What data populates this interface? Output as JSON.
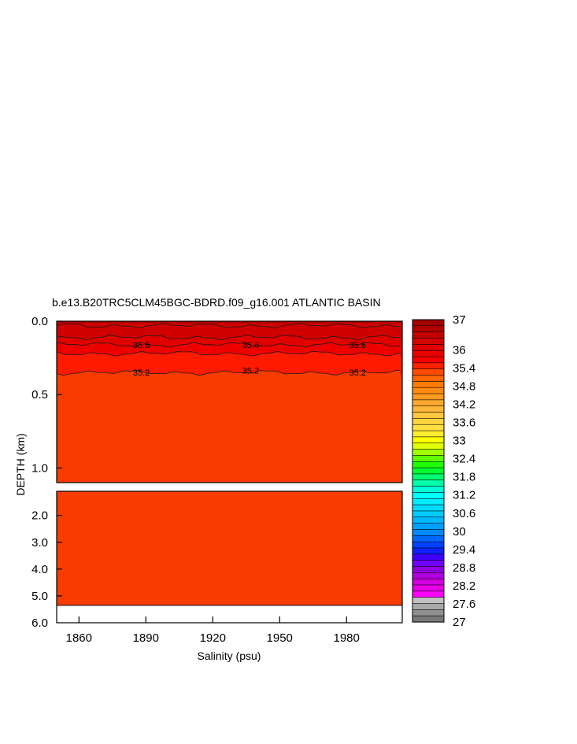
{
  "chart_data": {
    "type": "heatmap",
    "title": "b.e13.B20TRC5CLM45BGC-BDRD.f09_g16.001 ATLANTIC BASIN",
    "xlabel": "Salinity (psu)",
    "ylabel": "DEPTH (km)",
    "x_range": [
      1850,
      2005
    ],
    "x_ticks": [
      1860,
      1890,
      1920,
      1950,
      1980
    ],
    "x_tick_labels": [
      "1860",
      "1890",
      "1920",
      "1950",
      "1980"
    ],
    "upper_panel": {
      "depth_range": [
        0.0,
        1.1
      ],
      "y_ticks": [
        0.0,
        0.5,
        1.0
      ],
      "y_tick_labels": [
        "0.0",
        "0.5",
        "1.0"
      ]
    },
    "lower_panel": {
      "depth_range": [
        1.1,
        6.0
      ],
      "y_ticks": [
        2.0,
        3.0,
        4.0,
        5.0,
        6.0
      ],
      "y_tick_labels": [
        "2.0",
        "3.0",
        "4.0",
        "5.0",
        "6.0"
      ],
      "data_bottom_depth": 5.35
    },
    "bands": [
      {
        "from_depth": 0.0,
        "to_depth": 0.03,
        "color": "#b00000"
      },
      {
        "from_depth": 0.03,
        "to_depth": 0.11,
        "color": "#d00000"
      },
      {
        "from_depth": 0.11,
        "to_depth": 0.16,
        "color": "#e00000"
      },
      {
        "from_depth": 0.16,
        "to_depth": 0.22,
        "color": "#ee0000"
      },
      {
        "from_depth": 0.22,
        "to_depth": 0.35,
        "color": "#ff1a00"
      },
      {
        "from_depth": 0.35,
        "to_depth": 6.0,
        "color": "#f83c00"
      }
    ],
    "contour_depths": [
      0.03,
      0.11,
      0.16,
      0.22,
      0.35
    ],
    "contour_labels": [
      {
        "text": "35.6",
        "x": 1888,
        "depth": 0.16
      },
      {
        "text": "35.6",
        "x": 1937,
        "depth": 0.16
      },
      {
        "text": "35.6",
        "x": 1985,
        "depth": 0.16
      },
      {
        "text": "35.2",
        "x": 1888,
        "depth": 0.35
      },
      {
        "text": "35.2",
        "x": 1937,
        "depth": 0.335
      },
      {
        "text": "35.2",
        "x": 1985,
        "depth": 0.35
      }
    ],
    "colorbar": {
      "min": 27,
      "max": 37,
      "labels": [
        "37",
        "36",
        "35.4",
        "34.8",
        "34.2",
        "33.6",
        "33",
        "32.4",
        "31.8",
        "31.2",
        "30.6",
        "30",
        "29.4",
        "28.8",
        "28.2",
        "27.6",
        "27"
      ],
      "label_values": [
        37,
        36,
        35.4,
        34.8,
        34.2,
        33.6,
        33,
        32.4,
        31.8,
        31.2,
        30.6,
        30,
        29.4,
        28.8,
        28.2,
        27.6,
        27
      ],
      "colors": [
        "#a00000",
        "#b40000",
        "#c40000",
        "#d40000",
        "#e00000",
        "#ea0000",
        "#f50000",
        "#ff2000",
        "#ff4a00",
        "#ff6600",
        "#ff7a00",
        "#ff8a10",
        "#ff9a20",
        "#ffa830",
        "#ffb838",
        "#ffc840",
        "#ffd640",
        "#ffe040",
        "#ffee30",
        "#ffff00",
        "#e0ff00",
        "#a0ff00",
        "#60ff00",
        "#20ff00",
        "#00ff30",
        "#00ff70",
        "#00ffa8",
        "#00ffd8",
        "#00ffff",
        "#00eeff",
        "#00dcff",
        "#00ccff",
        "#00b8ff",
        "#00a0ff",
        "#0088ff",
        "#0068ff",
        "#0040ff",
        "#1020ff",
        "#4000ff",
        "#7000ff",
        "#9000e0",
        "#b000e0",
        "#d000e0",
        "#e800e8",
        "#ff00ff",
        "#c0c0c0",
        "#a8a8a8",
        "#909090",
        "#787878"
      ]
    }
  }
}
